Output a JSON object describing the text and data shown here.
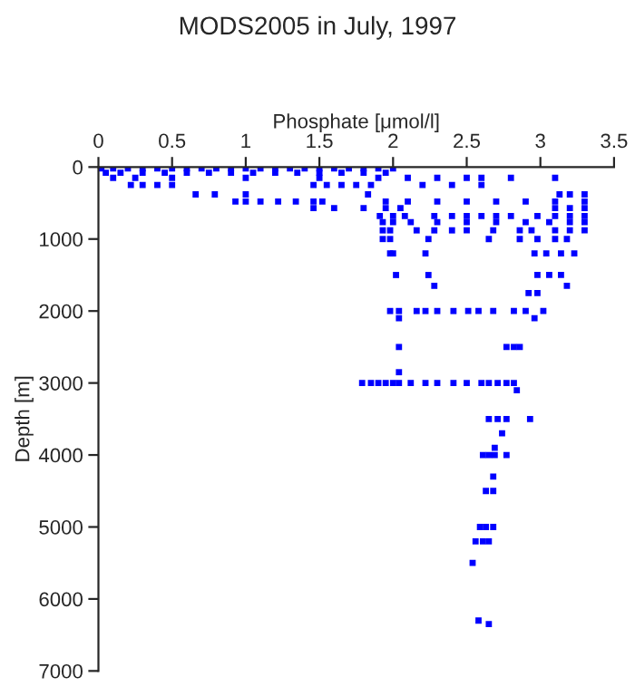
{
  "chart_data": {
    "type": "scatter",
    "title": "MODS2005 in July, 1997",
    "xlabel": "Phosphate [μmol/l]",
    "ylabel": "Depth [m]",
    "xlim": [
      0,
      3.5
    ],
    "xticks": [
      0,
      0.5,
      1,
      1.5,
      2,
      2.5,
      3,
      3.5
    ],
    "ylim": [
      7000,
      0
    ],
    "yticks": [
      0,
      1000,
      2000,
      3000,
      4000,
      5000,
      6000,
      7000
    ],
    "grid": false,
    "marker": "square",
    "legend": false,
    "series": [
      {
        "color": "#0000ff",
        "x": [
          0.02,
          0.1,
          0.2,
          0.3,
          0.4,
          0.5,
          0.6,
          0.7,
          0.8,
          0.9,
          1.0,
          1.1,
          1.2,
          1.3,
          1.4,
          1.5,
          1.6,
          1.7,
          1.8,
          1.9,
          2.0,
          0.05,
          0.15,
          0.3,
          0.45,
          0.6,
          0.75,
          0.9,
          1.05,
          1.2,
          1.35,
          1.5,
          1.65,
          1.8,
          1.95,
          0.1,
          0.25,
          0.5,
          1.0,
          1.5,
          1.9,
          2.1,
          2.3,
          2.5,
          2.6,
          2.8,
          3.1,
          0.22,
          0.3,
          0.4,
          0.5,
          1.46,
          1.55,
          1.65,
          1.75,
          1.85,
          2.2,
          2.4,
          2.6,
          0.66,
          0.79,
          1.0,
          1.83,
          3.13,
          3.2,
          3.3,
          0.93,
          1.0,
          1.1,
          1.22,
          1.34,
          1.46,
          1.52,
          1.95,
          2.1,
          2.3,
          2.5,
          2.7,
          2.9,
          3.1,
          3.3,
          1.46,
          1.6,
          1.8,
          1.95,
          2.05,
          3.1,
          3.2,
          3.3,
          1.91,
          2.0,
          2.08,
          2.28,
          2.4,
          2.5,
          2.6,
          2.7,
          2.8,
          2.98,
          3.1,
          3.2,
          3.3,
          1.93,
          2.0,
          2.12,
          2.3,
          2.5,
          2.7,
          2.9,
          3.06,
          3.2,
          3.3,
          1.93,
          1.98,
          2.16,
          2.28,
          2.4,
          2.5,
          2.68,
          2.86,
          2.94,
          3.1,
          3.2,
          3.3,
          1.93,
          1.98,
          2.24,
          2.65,
          2.86,
          2.98,
          3.1,
          3.18,
          1.98,
          2.0,
          2.22,
          2.96,
          3.04,
          3.14,
          3.23,
          2.02,
          2.24,
          2.98,
          3.06,
          3.14,
          2.28,
          3.18,
          2.92,
          2.98,
          1.98,
          2.04,
          2.16,
          2.22,
          2.3,
          2.41,
          2.51,
          2.58,
          2.68,
          2.82,
          2.9,
          3.02,
          2.04,
          2.96,
          2.04,
          2.77,
          2.82,
          2.86,
          2.04,
          1.79,
          1.85,
          1.9,
          1.95,
          2.0,
          2.04,
          2.12,
          2.22,
          2.3,
          2.41,
          2.5,
          2.6,
          2.65,
          2.71,
          2.77,
          2.82,
          2.84,
          2.65,
          2.71,
          2.77,
          2.93,
          2.74,
          2.69,
          2.61,
          2.65,
          2.69,
          2.77,
          2.68,
          2.63,
          2.68,
          2.59,
          2.63,
          2.68,
          2.56,
          2.61,
          2.65,
          2.54,
          2.58,
          2.65
        ],
        "values": [
          20,
          20,
          20,
          20,
          20,
          20,
          20,
          20,
          20,
          20,
          20,
          20,
          20,
          20,
          20,
          20,
          20,
          20,
          20,
          20,
          20,
          80,
          80,
          80,
          80,
          80,
          80,
          80,
          80,
          80,
          80,
          80,
          80,
          80,
          80,
          150,
          150,
          150,
          150,
          150,
          150,
          150,
          150,
          150,
          150,
          150,
          150,
          250,
          250,
          250,
          250,
          250,
          250,
          250,
          250,
          250,
          250,
          250,
          250,
          380,
          380,
          380,
          380,
          380,
          380,
          380,
          480,
          480,
          480,
          480,
          480,
          480,
          480,
          480,
          480,
          480,
          480,
          480,
          480,
          480,
          480,
          570,
          570,
          570,
          570,
          570,
          570,
          570,
          570,
          680,
          680,
          680,
          680,
          680,
          680,
          680,
          680,
          680,
          680,
          680,
          680,
          680,
          765,
          765,
          765,
          765,
          765,
          765,
          765,
          765,
          765,
          765,
          880,
          880,
          880,
          880,
          880,
          880,
          880,
          880,
          880,
          880,
          880,
          880,
          1000,
          1000,
          1000,
          1000,
          1000,
          1000,
          1000,
          1000,
          1200,
          1200,
          1200,
          1200,
          1200,
          1200,
          1200,
          1500,
          1500,
          1500,
          1500,
          1500,
          1650,
          1650,
          1750,
          1750,
          2000,
          2000,
          2000,
          2000,
          2000,
          2000,
          2000,
          2000,
          2000,
          2000,
          2000,
          2000,
          2100,
          2100,
          2500,
          2500,
          2500,
          2500,
          2850,
          3000,
          3000,
          3000,
          3000,
          3000,
          3000,
          3000,
          3000,
          3000,
          3000,
          3000,
          3000,
          3000,
          3000,
          3000,
          3000,
          3100,
          3500,
          3500,
          3500,
          3500,
          3700,
          3900,
          4000,
          4000,
          4000,
          4000,
          4300,
          4500,
          4500,
          5000,
          5000,
          5000,
          5200,
          5200,
          5200,
          5500,
          6300,
          6350
        ]
      }
    ]
  }
}
